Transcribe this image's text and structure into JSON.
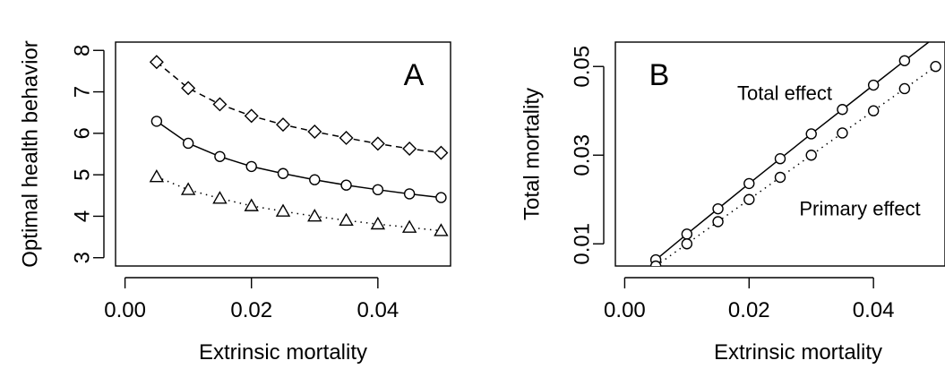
{
  "chart_data": [
    {
      "type": "line",
      "panel_label": "A",
      "xlabel": "Extrinsic mortality",
      "ylabel": "Optimal health behavior",
      "xlim": [
        -0.0015,
        0.0515
      ],
      "ylim": [
        2.8,
        8.2
      ],
      "x_ticks": [
        0.0,
        0.02,
        0.04
      ],
      "x_tick_labels": [
        "0.00",
        "0.02",
        "0.04"
      ],
      "y_ticks": [
        3,
        4,
        5,
        6,
        7,
        8
      ],
      "y_tick_labels": [
        "3",
        "4",
        "5",
        "6",
        "7",
        "8"
      ],
      "grid": false,
      "x": [
        0.005,
        0.01,
        0.015,
        0.02,
        0.025,
        0.03,
        0.035,
        0.04,
        0.045,
        0.05
      ],
      "series": [
        {
          "marker": "diamond",
          "line": "dashed",
          "values": [
            7.72,
            7.09,
            6.7,
            6.42,
            6.21,
            6.04,
            5.89,
            5.75,
            5.63,
            5.53
          ]
        },
        {
          "marker": "circle",
          "line": "solid",
          "values": [
            6.29,
            5.76,
            5.44,
            5.2,
            5.03,
            4.88,
            4.75,
            4.64,
            4.54,
            4.45
          ]
        },
        {
          "marker": "triangle",
          "line": "dotted",
          "values": [
            4.95,
            4.64,
            4.43,
            4.25,
            4.12,
            4.0,
            3.9,
            3.81,
            3.73,
            3.65
          ]
        }
      ]
    },
    {
      "type": "line",
      "panel_label": "B",
      "xlabel": "Extrinsic mortality",
      "ylabel": "Total mortality",
      "xlim": [
        -0.0015,
        0.0515
      ],
      "ylim": [
        0.005,
        0.0555
      ],
      "x_ticks": [
        0.0,
        0.02,
        0.04
      ],
      "x_tick_labels": [
        "0.00",
        "0.02",
        "0.04"
      ],
      "y_ticks": [
        0.01,
        0.03,
        0.05
      ],
      "y_tick_labels": [
        "0.01",
        "0.03",
        "0.05"
      ],
      "grid": false,
      "x": [
        0.005,
        0.01,
        0.015,
        0.02,
        0.025,
        0.03,
        0.035,
        0.04,
        0.045,
        0.05
      ],
      "series": [
        {
          "name": "Total effect",
          "marker": "circle",
          "line": "solid",
          "values": [
            0.0064,
            0.0122,
            0.0179,
            0.0236,
            0.0292,
            0.0348,
            0.0403,
            0.0458,
            0.0513,
            0.0567
          ]
        },
        {
          "name": "Primary effect",
          "marker": "circle",
          "line": "dotted",
          "values": [
            0.005,
            0.01,
            0.015,
            0.02,
            0.025,
            0.03,
            0.035,
            0.04,
            0.045,
            0.05
          ]
        }
      ]
    }
  ]
}
